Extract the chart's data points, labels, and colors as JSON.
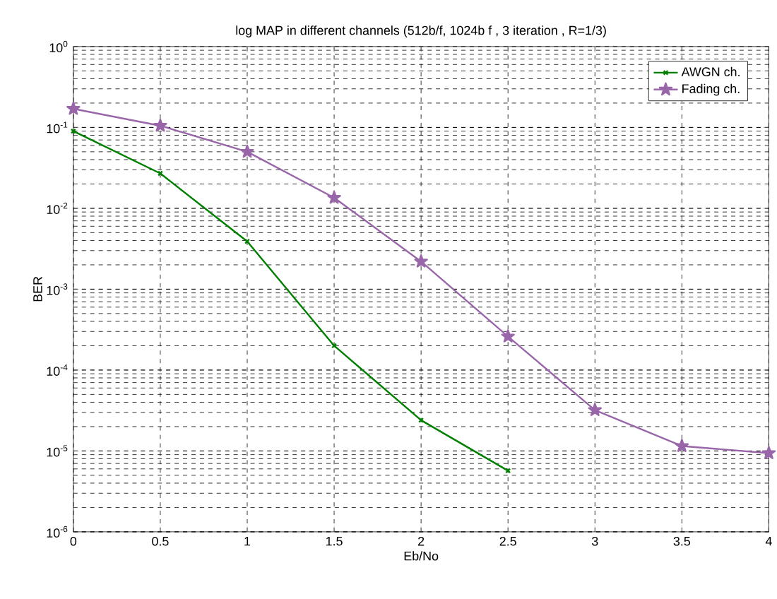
{
  "chart_data": {
    "type": "line",
    "title": "log MAP in different channels (512b/f, 1024b f , 3 iteration , R=1/3)",
    "xlabel": "Eb/No",
    "ylabel": "BER",
    "log": "y",
    "grid": true,
    "legend": "top right",
    "xlim": [
      0,
      4
    ],
    "xticks": [
      0,
      0.5,
      1,
      1.5,
      2,
      2.5,
      3,
      3.5,
      4
    ],
    "ylim": [
      1e-06,
      1
    ],
    "yticks": [
      {
        "value": 1e-06,
        "label": "10$^{-6}$"
      },
      {
        "value": 1e-05,
        "label": "10$^{-5}$"
      },
      {
        "value": 0.0001,
        "label": "10$^{-4}$"
      },
      {
        "value": 0.001,
        "label": "10$^{-3}$"
      },
      {
        "value": 0.01,
        "label": "10$^{-2}$"
      },
      {
        "value": 0.1,
        "label": "10$^{-1}$"
      },
      {
        "value": 1,
        "label": "10$^{0}$"
      }
    ],
    "series": [
      {
        "name": "AWGN ch.",
        "color": "#008000",
        "marker": "cross",
        "x": [
          0,
          0.5,
          1,
          1.5,
          2,
          2.5
        ],
        "values": [
          0.09,
          0.027,
          0.0039,
          0.0002,
          2.4e-05,
          5.7e-06
        ]
      },
      {
        "name": "Fading ch.",
        "color": "#9966aa",
        "marker": "star",
        "x": [
          0,
          0.5,
          1,
          1.5,
          2,
          2.5,
          3,
          3.5,
          4
        ],
        "values": [
          0.17,
          0.105,
          0.05,
          0.0135,
          0.0022,
          0.00026,
          3.2e-05,
          1.15e-05,
          9.4e-06
        ]
      }
    ]
  }
}
